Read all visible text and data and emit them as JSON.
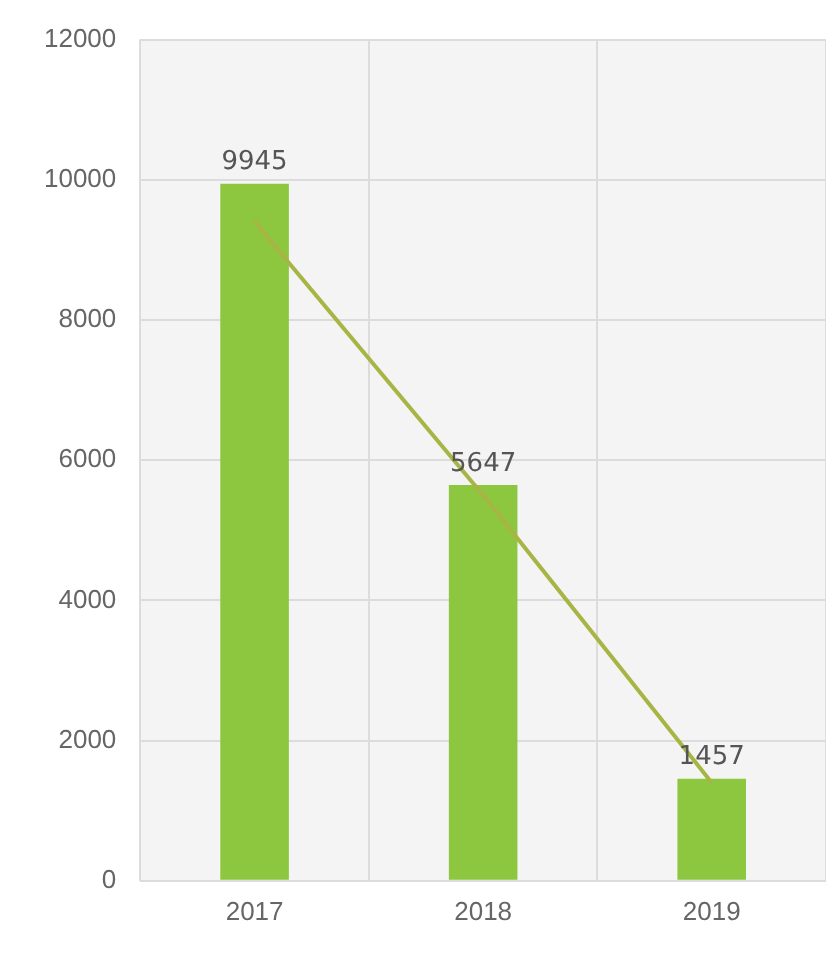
{
  "chart_data": {
    "type": "bar",
    "categories": [
      "2017",
      "2018",
      "2019"
    ],
    "series": [
      {
        "color": "#8dc63f",
        "values": [
          9945,
          5647,
          1457
        ],
        "value_labels": [
          "9945",
          "5647",
          "1457"
        ]
      },
      {
        "type": "line",
        "color": "#a8b545",
        "values": [
          9400,
          5500,
          1400
        ]
      }
    ],
    "ylim": [
      0,
      12000
    ],
    "yticks": [
      0,
      2000,
      4000,
      6000,
      8000,
      10000,
      12000
    ],
    "grid": true,
    "marker": "none",
    "legend": false
  }
}
